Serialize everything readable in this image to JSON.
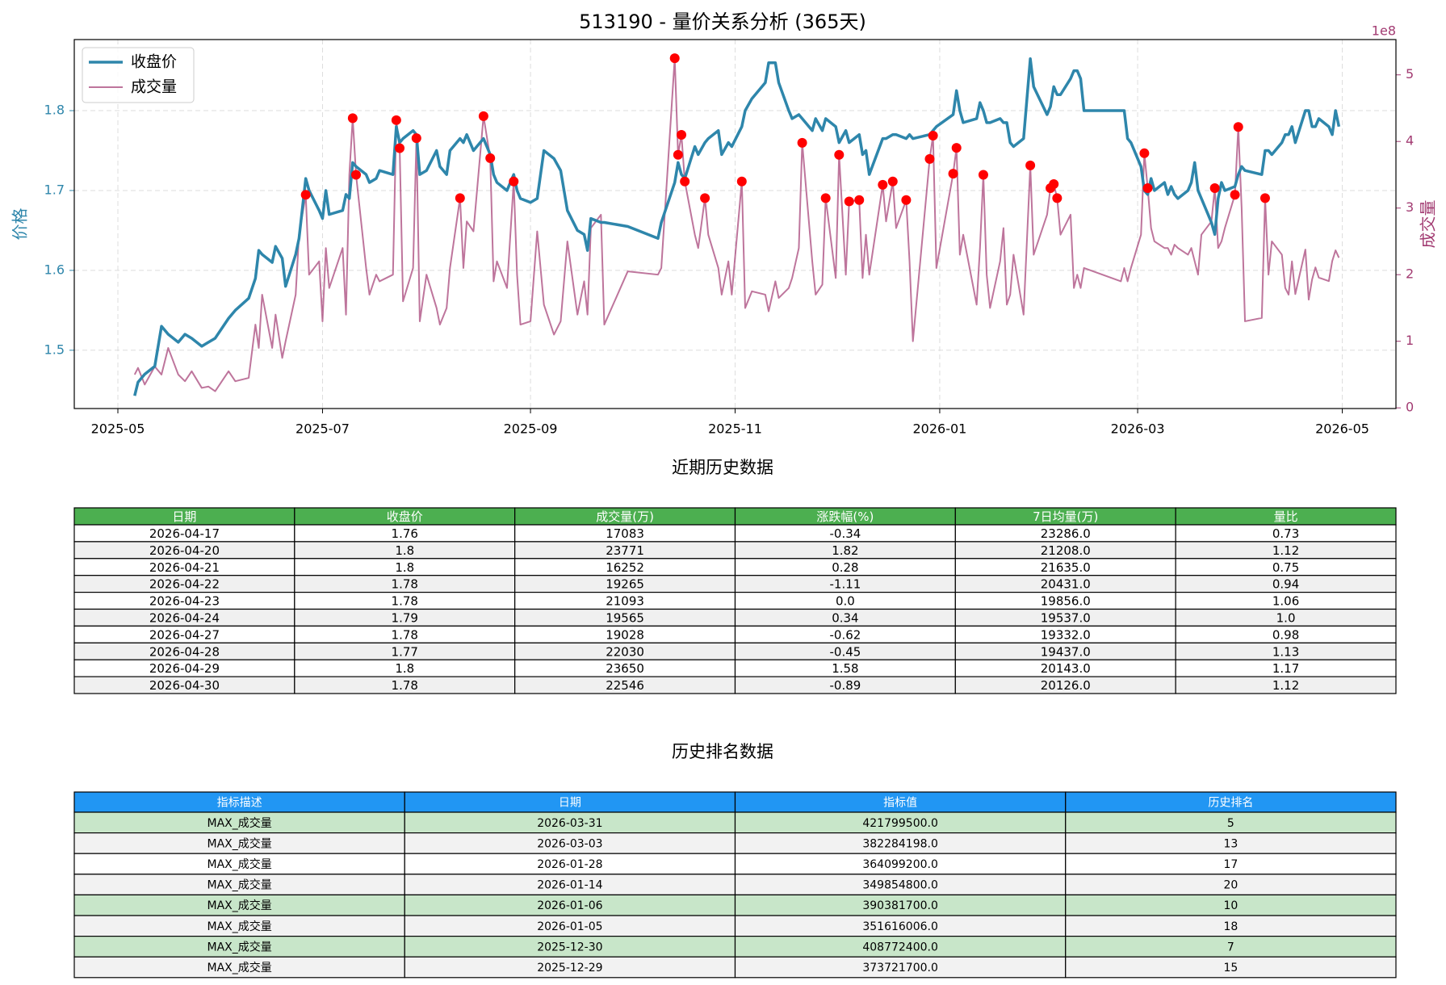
{
  "chart_data": {
    "type": "line",
    "title": "513190 - 量价关系分析 (365天)",
    "y_label": "价格",
    "y2_label": "成交量",
    "y2_multiplier_label": "1e8",
    "x": [
      "2025-05-06",
      "2025-05-07",
      "2025-05-09",
      "2025-05-12",
      "2025-05-14",
      "2025-05-16",
      "2025-05-19",
      "2025-05-21",
      "2025-05-23",
      "2025-05-26",
      "2025-05-28",
      "2025-05-30",
      "2025-06-03",
      "2025-06-05",
      "2025-06-09",
      "2025-06-11",
      "2025-06-12",
      "2025-06-13",
      "2025-06-16",
      "2025-06-17",
      "2025-06-19",
      "2025-06-20",
      "2025-06-23",
      "2025-06-24",
      "2025-06-26",
      "2025-06-27",
      "2025-06-30",
      "2025-07-01",
      "2025-07-02",
      "2025-07-03",
      "2025-07-07",
      "2025-07-08",
      "2025-07-09",
      "2025-07-10",
      "2025-07-11",
      "2025-07-14",
      "2025-07-15",
      "2025-07-17",
      "2025-07-18",
      "2025-07-22",
      "2025-07-23",
      "2025-07-24",
      "2025-07-25",
      "2025-07-28",
      "2025-07-29",
      "2025-07-30",
      "2025-08-01",
      "2025-08-04",
      "2025-08-05",
      "2025-08-07",
      "2025-08-08",
      "2025-08-11",
      "2025-08-12",
      "2025-08-13",
      "2025-08-15",
      "2025-08-18",
      "2025-08-20",
      "2025-08-21",
      "2025-08-22",
      "2025-08-25",
      "2025-08-27",
      "2025-08-28",
      "2025-08-29",
      "2025-09-01",
      "2025-09-03",
      "2025-09-05",
      "2025-09-08",
      "2025-09-10",
      "2025-09-12",
      "2025-09-15",
      "2025-09-17",
      "2025-09-18",
      "2025-09-19",
      "2025-09-22",
      "2025-09-23",
      "2025-09-30",
      "2025-10-09",
      "2025-10-10",
      "2025-10-14",
      "2025-10-15",
      "2025-10-16",
      "2025-10-17",
      "2025-10-20",
      "2025-10-21",
      "2025-10-23",
      "2025-10-24",
      "2025-10-27",
      "2025-10-28",
      "2025-10-30",
      "2025-10-31",
      "2025-11-03",
      "2025-11-04",
      "2025-11-06",
      "2025-11-10",
      "2025-11-11",
      "2025-11-13",
      "2025-11-14",
      "2025-11-17",
      "2025-11-18",
      "2025-11-20",
      "2025-11-21",
      "2025-11-24",
      "2025-11-25",
      "2025-11-27",
      "2025-11-28",
      "2025-12-01",
      "2025-12-02",
      "2025-12-04",
      "2025-12-05",
      "2025-12-08",
      "2025-12-09",
      "2025-12-10",
      "2025-12-11",
      "2025-12-15",
      "2025-12-16",
      "2025-12-18",
      "2025-12-19",
      "2025-12-22",
      "2025-12-23",
      "2025-12-24",
      "2025-12-29",
      "2025-12-30",
      "2025-12-31",
      "2026-01-05",
      "2026-01-06",
      "2026-01-07",
      "2026-01-08",
      "2026-01-12",
      "2026-01-13",
      "2026-01-14",
      "2026-01-15",
      "2026-01-16",
      "2026-01-19",
      "2026-01-20",
      "2026-01-21",
      "2026-01-22",
      "2026-01-23",
      "2026-01-26",
      "2026-01-28",
      "2026-01-29",
      "2026-02-02",
      "2026-02-03",
      "2026-02-04",
      "2026-02-05",
      "2026-02-06",
      "2026-02-09",
      "2026-02-10",
      "2026-02-11",
      "2026-02-12",
      "2026-02-13",
      "2026-02-24",
      "2026-02-25",
      "2026-02-26",
      "2026-02-27",
      "2026-03-02",
      "2026-03-03",
      "2026-03-04",
      "2026-03-05",
      "2026-03-06",
      "2026-03-09",
      "2026-03-10",
      "2026-03-11",
      "2026-03-12",
      "2026-03-13",
      "2026-03-16",
      "2026-03-17",
      "2026-03-18",
      "2026-03-19",
      "2026-03-20",
      "2026-03-23",
      "2026-03-24",
      "2026-03-25",
      "2026-03-26",
      "2026-03-27",
      "2026-03-30",
      "2026-03-31",
      "2026-04-01",
      "2026-04-02",
      "2026-04-07",
      "2026-04-08",
      "2026-04-09",
      "2026-04-10",
      "2026-04-13",
      "2026-04-14",
      "2026-04-15",
      "2026-04-16",
      "2026-04-17",
      "2026-04-20",
      "2026-04-21",
      "2026-04-22",
      "2026-04-23",
      "2026-04-24",
      "2026-04-27",
      "2026-04-28",
      "2026-04-29",
      "2026-04-30"
    ],
    "series": [
      {
        "name": "收盘价",
        "color": "#2e86ab",
        "width": 3.5,
        "opacity": 1,
        "values": [
          1.443,
          1.46,
          1.47,
          1.48,
          1.53,
          1.52,
          1.51,
          1.52,
          1.515,
          1.505,
          1.51,
          1.515,
          1.54,
          1.55,
          1.565,
          1.59,
          1.625,
          1.62,
          1.61,
          1.63,
          1.615,
          1.58,
          1.62,
          1.64,
          1.715,
          1.7,
          1.675,
          1.665,
          1.7,
          1.67,
          1.675,
          1.695,
          1.69,
          1.735,
          1.73,
          1.72,
          1.71,
          1.715,
          1.725,
          1.72,
          1.78,
          1.76,
          1.765,
          1.775,
          1.77,
          1.72,
          1.725,
          1.75,
          1.73,
          1.72,
          1.75,
          1.765,
          1.76,
          1.77,
          1.75,
          1.765,
          1.745,
          1.72,
          1.71,
          1.7,
          1.72,
          1.7,
          1.69,
          1.685,
          1.69,
          1.75,
          1.74,
          1.725,
          1.675,
          1.65,
          1.645,
          1.625,
          1.665,
          1.66,
          1.66,
          1.655,
          1.64,
          1.66,
          1.71,
          1.735,
          1.72,
          1.715,
          1.755,
          1.745,
          1.76,
          1.765,
          1.775,
          1.745,
          1.76,
          1.755,
          1.78,
          1.8,
          1.815,
          1.835,
          1.86,
          1.86,
          1.835,
          1.8,
          1.79,
          1.795,
          1.79,
          1.775,
          1.79,
          1.775,
          1.79,
          1.78,
          1.76,
          1.775,
          1.76,
          1.77,
          1.745,
          1.75,
          1.72,
          1.765,
          1.765,
          1.77,
          1.77,
          1.765,
          1.77,
          1.765,
          1.77,
          1.775,
          1.78,
          1.795,
          1.825,
          1.8,
          1.785,
          1.79,
          1.81,
          1.8,
          1.785,
          1.785,
          1.79,
          1.785,
          1.785,
          1.76,
          1.755,
          1.765,
          1.865,
          1.83,
          1.795,
          1.805,
          1.83,
          1.82,
          1.82,
          1.84,
          1.85,
          1.85,
          1.84,
          1.8,
          1.8,
          1.8,
          1.765,
          1.76,
          1.73,
          1.7,
          1.695,
          1.715,
          1.7,
          1.71,
          1.695,
          1.705,
          1.695,
          1.69,
          1.7,
          1.71,
          1.735,
          1.7,
          1.69,
          1.66,
          1.645,
          1.69,
          1.71,
          1.7,
          1.705,
          1.72,
          1.73,
          1.725,
          1.72,
          1.75,
          1.75,
          1.745,
          1.76,
          1.77,
          1.77,
          1.78,
          1.76,
          1.8,
          1.8,
          1.78,
          1.78,
          1.79,
          1.78,
          1.77,
          1.8,
          1.78
        ]
      },
      {
        "name": "成交量",
        "color": "#a23b72",
        "width": 2,
        "opacity": 0.7,
        "axis": "y2",
        "values": [
          0.5,
          0.6,
          0.35,
          0.62,
          0.5,
          0.9,
          0.5,
          0.4,
          0.55,
          0.3,
          0.32,
          0.25,
          0.55,
          0.4,
          0.45,
          1.25,
          0.9,
          1.7,
          0.9,
          1.4,
          0.75,
          1.0,
          1.7,
          2.6,
          3.2,
          2.0,
          2.2,
          1.3,
          2.4,
          1.8,
          2.4,
          1.4,
          3.5,
          4.35,
          3.5,
          2.1,
          1.7,
          2.0,
          1.9,
          2.0,
          4.32,
          3.9,
          1.6,
          2.1,
          4.05,
          1.3,
          2.0,
          1.5,
          1.25,
          1.5,
          2.1,
          3.15,
          2.1,
          2.8,
          2.65,
          4.38,
          3.75,
          1.9,
          2.2,
          1.8,
          3.4,
          2.0,
          1.25,
          1.3,
          2.65,
          1.55,
          1.1,
          1.3,
          2.5,
          1.4,
          1.9,
          1.4,
          2.7,
          2.9,
          1.25,
          2.05,
          2.0,
          2.1,
          5.25,
          3.8,
          4.1,
          3.4,
          2.6,
          2.4,
          3.15,
          2.6,
          2.1,
          1.7,
          2.2,
          1.7,
          3.4,
          1.5,
          1.75,
          1.7,
          1.45,
          1.9,
          1.65,
          1.8,
          1.95,
          2.4,
          3.98,
          2.2,
          1.7,
          1.85,
          3.15,
          1.95,
          3.8,
          2.0,
          3.1,
          3.12,
          1.95,
          2.6,
          2.0,
          3.35,
          2.8,
          3.4,
          2.7,
          3.12,
          2.2,
          1.0,
          3.737,
          4.088,
          2.1,
          3.516,
          3.904,
          2.3,
          2.6,
          1.55,
          2.4,
          3.499,
          2.0,
          1.5,
          2.2,
          2.7,
          1.55,
          1.7,
          2.3,
          1.4,
          3.641,
          2.3,
          2.9,
          3.3,
          3.36,
          3.15,
          2.6,
          2.9,
          1.8,
          2.0,
          1.8,
          2.1,
          1.9,
          2.1,
          1.9,
          2.1,
          2.6,
          3.823,
          3.3,
          2.7,
          2.5,
          2.4,
          2.4,
          2.3,
          2.45,
          2.4,
          2.3,
          2.4,
          2.2,
          2.0,
          2.6,
          2.8,
          3.3,
          2.4,
          2.5,
          2.7,
          3.2,
          4.218,
          3.0,
          1.3,
          1.35,
          3.15,
          2.0,
          2.5,
          2.3,
          1.8,
          1.7,
          2.2,
          1.7083,
          2.3771,
          1.6252,
          1.9265,
          2.1093,
          1.9565,
          1.9028,
          2.203,
          2.365,
          2.2546
        ]
      }
    ],
    "highlights": {
      "color": "#ff0000",
      "x": [
        "2025-06-26",
        "2025-07-10",
        "2025-07-11",
        "2025-07-23",
        "2025-07-24",
        "2025-07-29",
        "2025-08-11",
        "2025-08-18",
        "2025-08-20",
        "2025-08-27",
        "2025-10-14",
        "2025-10-15",
        "2025-10-16",
        "2025-10-17",
        "2025-10-23",
        "2025-11-03",
        "2025-11-21",
        "2025-11-28",
        "2025-12-02",
        "2025-12-05",
        "2025-12-08",
        "2025-12-15",
        "2025-12-18",
        "2025-12-22",
        "2025-12-29",
        "2025-12-30",
        "2026-01-05",
        "2026-01-06",
        "2026-01-14",
        "2026-01-28",
        "2026-02-03",
        "2026-02-04",
        "2026-02-05",
        "2026-03-03",
        "2026-03-04",
        "2026-03-24",
        "2026-03-30",
        "2026-03-31",
        "2026-04-08"
      ],
      "values": [
        3.2,
        4.35,
        3.5,
        4.32,
        3.9,
        4.05,
        3.15,
        4.38,
        3.75,
        3.4,
        5.25,
        3.8,
        4.1,
        3.4,
        3.15,
        3.4,
        3.98,
        3.15,
        3.8,
        3.1,
        3.12,
        3.35,
        3.4,
        3.12,
        3.737,
        4.088,
        3.516,
        3.904,
        3.499,
        3.641,
        3.3,
        3.36,
        3.15,
        3.823,
        3.3,
        3.3,
        3.2,
        4.218,
        3.15
      ]
    },
    "xlim": [
      "2025-04-18",
      "2026-05-17"
    ],
    "xticks": [
      {
        "value": "2025-05-01",
        "label": "2025-05"
      },
      {
        "value": "2025-07-01",
        "label": "2025-07"
      },
      {
        "value": "2025-09-01",
        "label": "2025-09"
      },
      {
        "value": "2025-11-01",
        "label": "2025-11"
      },
      {
        "value": "2026-01-01",
        "label": "2026-01"
      },
      {
        "value": "2026-03-01",
        "label": "2026-03"
      },
      {
        "value": "2026-05-01",
        "label": "2026-05"
      }
    ],
    "ylim": [
      1.427,
      1.889
    ],
    "yticks": [
      1.5,
      1.6,
      1.7,
      1.8
    ],
    "y2lim": [
      -0.01,
      5.53
    ],
    "y2ticks": [
      0,
      1,
      2,
      3,
      4,
      5
    ],
    "grid": true,
    "legend": "upper left"
  },
  "tables": [
    {
      "title": "近期历史数据",
      "header_color": "#4caf50",
      "columns": [
        "日期",
        "收盘价",
        "成交量(万)",
        "涨跌幅(%)",
        "7日均量(万)",
        "量比"
      ],
      "rows": [
        [
          "2026-04-17",
          "1.76",
          "17083",
          "-0.34",
          "23286.0",
          "0.73"
        ],
        [
          "2026-04-20",
          "1.8",
          "23771",
          "1.82",
          "21208.0",
          "1.12"
        ],
        [
          "2026-04-21",
          "1.8",
          "16252",
          "0.28",
          "21635.0",
          "0.75"
        ],
        [
          "2026-04-22",
          "1.78",
          "19265",
          "-1.11",
          "20431.0",
          "0.94"
        ],
        [
          "2026-04-23",
          "1.78",
          "21093",
          "0.0",
          "19856.0",
          "1.06"
        ],
        [
          "2026-04-24",
          "1.79",
          "19565",
          "0.34",
          "19537.0",
          "1.0"
        ],
        [
          "2026-04-27",
          "1.78",
          "19028",
          "-0.62",
          "19332.0",
          "0.98"
        ],
        [
          "2026-04-28",
          "1.77",
          "22030",
          "-0.45",
          "19437.0",
          "1.13"
        ],
        [
          "2026-04-29",
          "1.8",
          "23650",
          "1.58",
          "20143.0",
          "1.17"
        ],
        [
          "2026-04-30",
          "1.78",
          "22546",
          "-0.89",
          "20126.0",
          "1.12"
        ]
      ],
      "row_colors": [
        "#ffffff",
        "#f0f0f0",
        "#ffffff",
        "#f0f0f0",
        "#ffffff",
        "#f0f0f0",
        "#ffffff",
        "#f0f0f0",
        "#ffffff",
        "#f0f0f0"
      ]
    },
    {
      "title": "历史排名数据",
      "header_color": "#2196f3",
      "columns": [
        "指标描述",
        "日期",
        "指标值",
        "历史排名"
      ],
      "rows": [
        [
          "MAX_成交量",
          "2026-03-31",
          "421799500.0",
          "5"
        ],
        [
          "MAX_成交量",
          "2026-03-03",
          "382284198.0",
          "13"
        ],
        [
          "MAX_成交量",
          "2026-01-28",
          "364099200.0",
          "17"
        ],
        [
          "MAX_成交量",
          "2026-01-14",
          "349854800.0",
          "20"
        ],
        [
          "MAX_成交量",
          "2026-01-06",
          "390381700.0",
          "10"
        ],
        [
          "MAX_成交量",
          "2026-01-05",
          "351616006.0",
          "18"
        ],
        [
          "MAX_成交量",
          "2025-12-30",
          "408772400.0",
          "7"
        ],
        [
          "MAX_成交量",
          "2025-12-29",
          "373721700.0",
          "15"
        ]
      ],
      "row_colors": [
        "#c8e6c9",
        "#f2f2f2",
        "#ffffff",
        "#f2f2f2",
        "#c8e6c9",
        "#f2f2f2",
        "#c8e6c9",
        "#f2f2f2"
      ]
    }
  ]
}
